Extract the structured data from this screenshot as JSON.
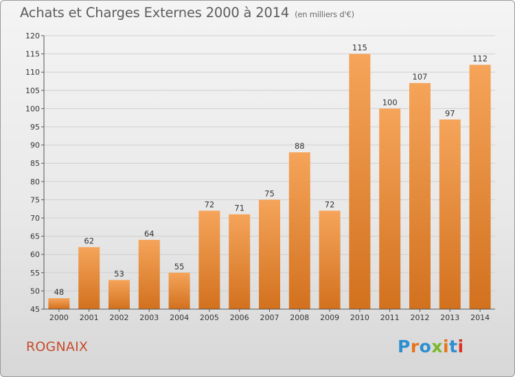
{
  "header": {
    "title": "Achats et Charges Externes 2000 à 2014",
    "subtitle": "(en milliers d'€)"
  },
  "footer": {
    "commune": "ROGNAIX",
    "logo_text": "Proxiti",
    "logo_colors": [
      "#2c8fd0",
      "#e8731a",
      "#2c8fd0",
      "#7ab72b",
      "#e8731a",
      "#2c8fd0",
      "#d9322a"
    ]
  },
  "colors": {
    "bar_light": "#f5a45a",
    "bar_dark": "#d2711e",
    "grid": "#cfcfcf",
    "axis": "#555555"
  },
  "chart_data": {
    "type": "bar",
    "title": "Achats et Charges Externes 2000 à 2014",
    "subtitle": "(en milliers d'€)",
    "categories": [
      "2000",
      "2001",
      "2002",
      "2003",
      "2004",
      "2005",
      "2006",
      "2007",
      "2008",
      "2009",
      "2010",
      "2011",
      "2012",
      "2013",
      "2014"
    ],
    "values": [
      48,
      62,
      53,
      64,
      55,
      72,
      71,
      75,
      88,
      72,
      115,
      100,
      107,
      97,
      112
    ],
    "ylim": [
      45,
      120
    ],
    "yticks": [
      45,
      50,
      55,
      60,
      65,
      70,
      75,
      80,
      85,
      90,
      95,
      100,
      105,
      110,
      115,
      120
    ],
    "xlabel": "",
    "ylabel": "",
    "grid": true,
    "data_labels": true
  }
}
